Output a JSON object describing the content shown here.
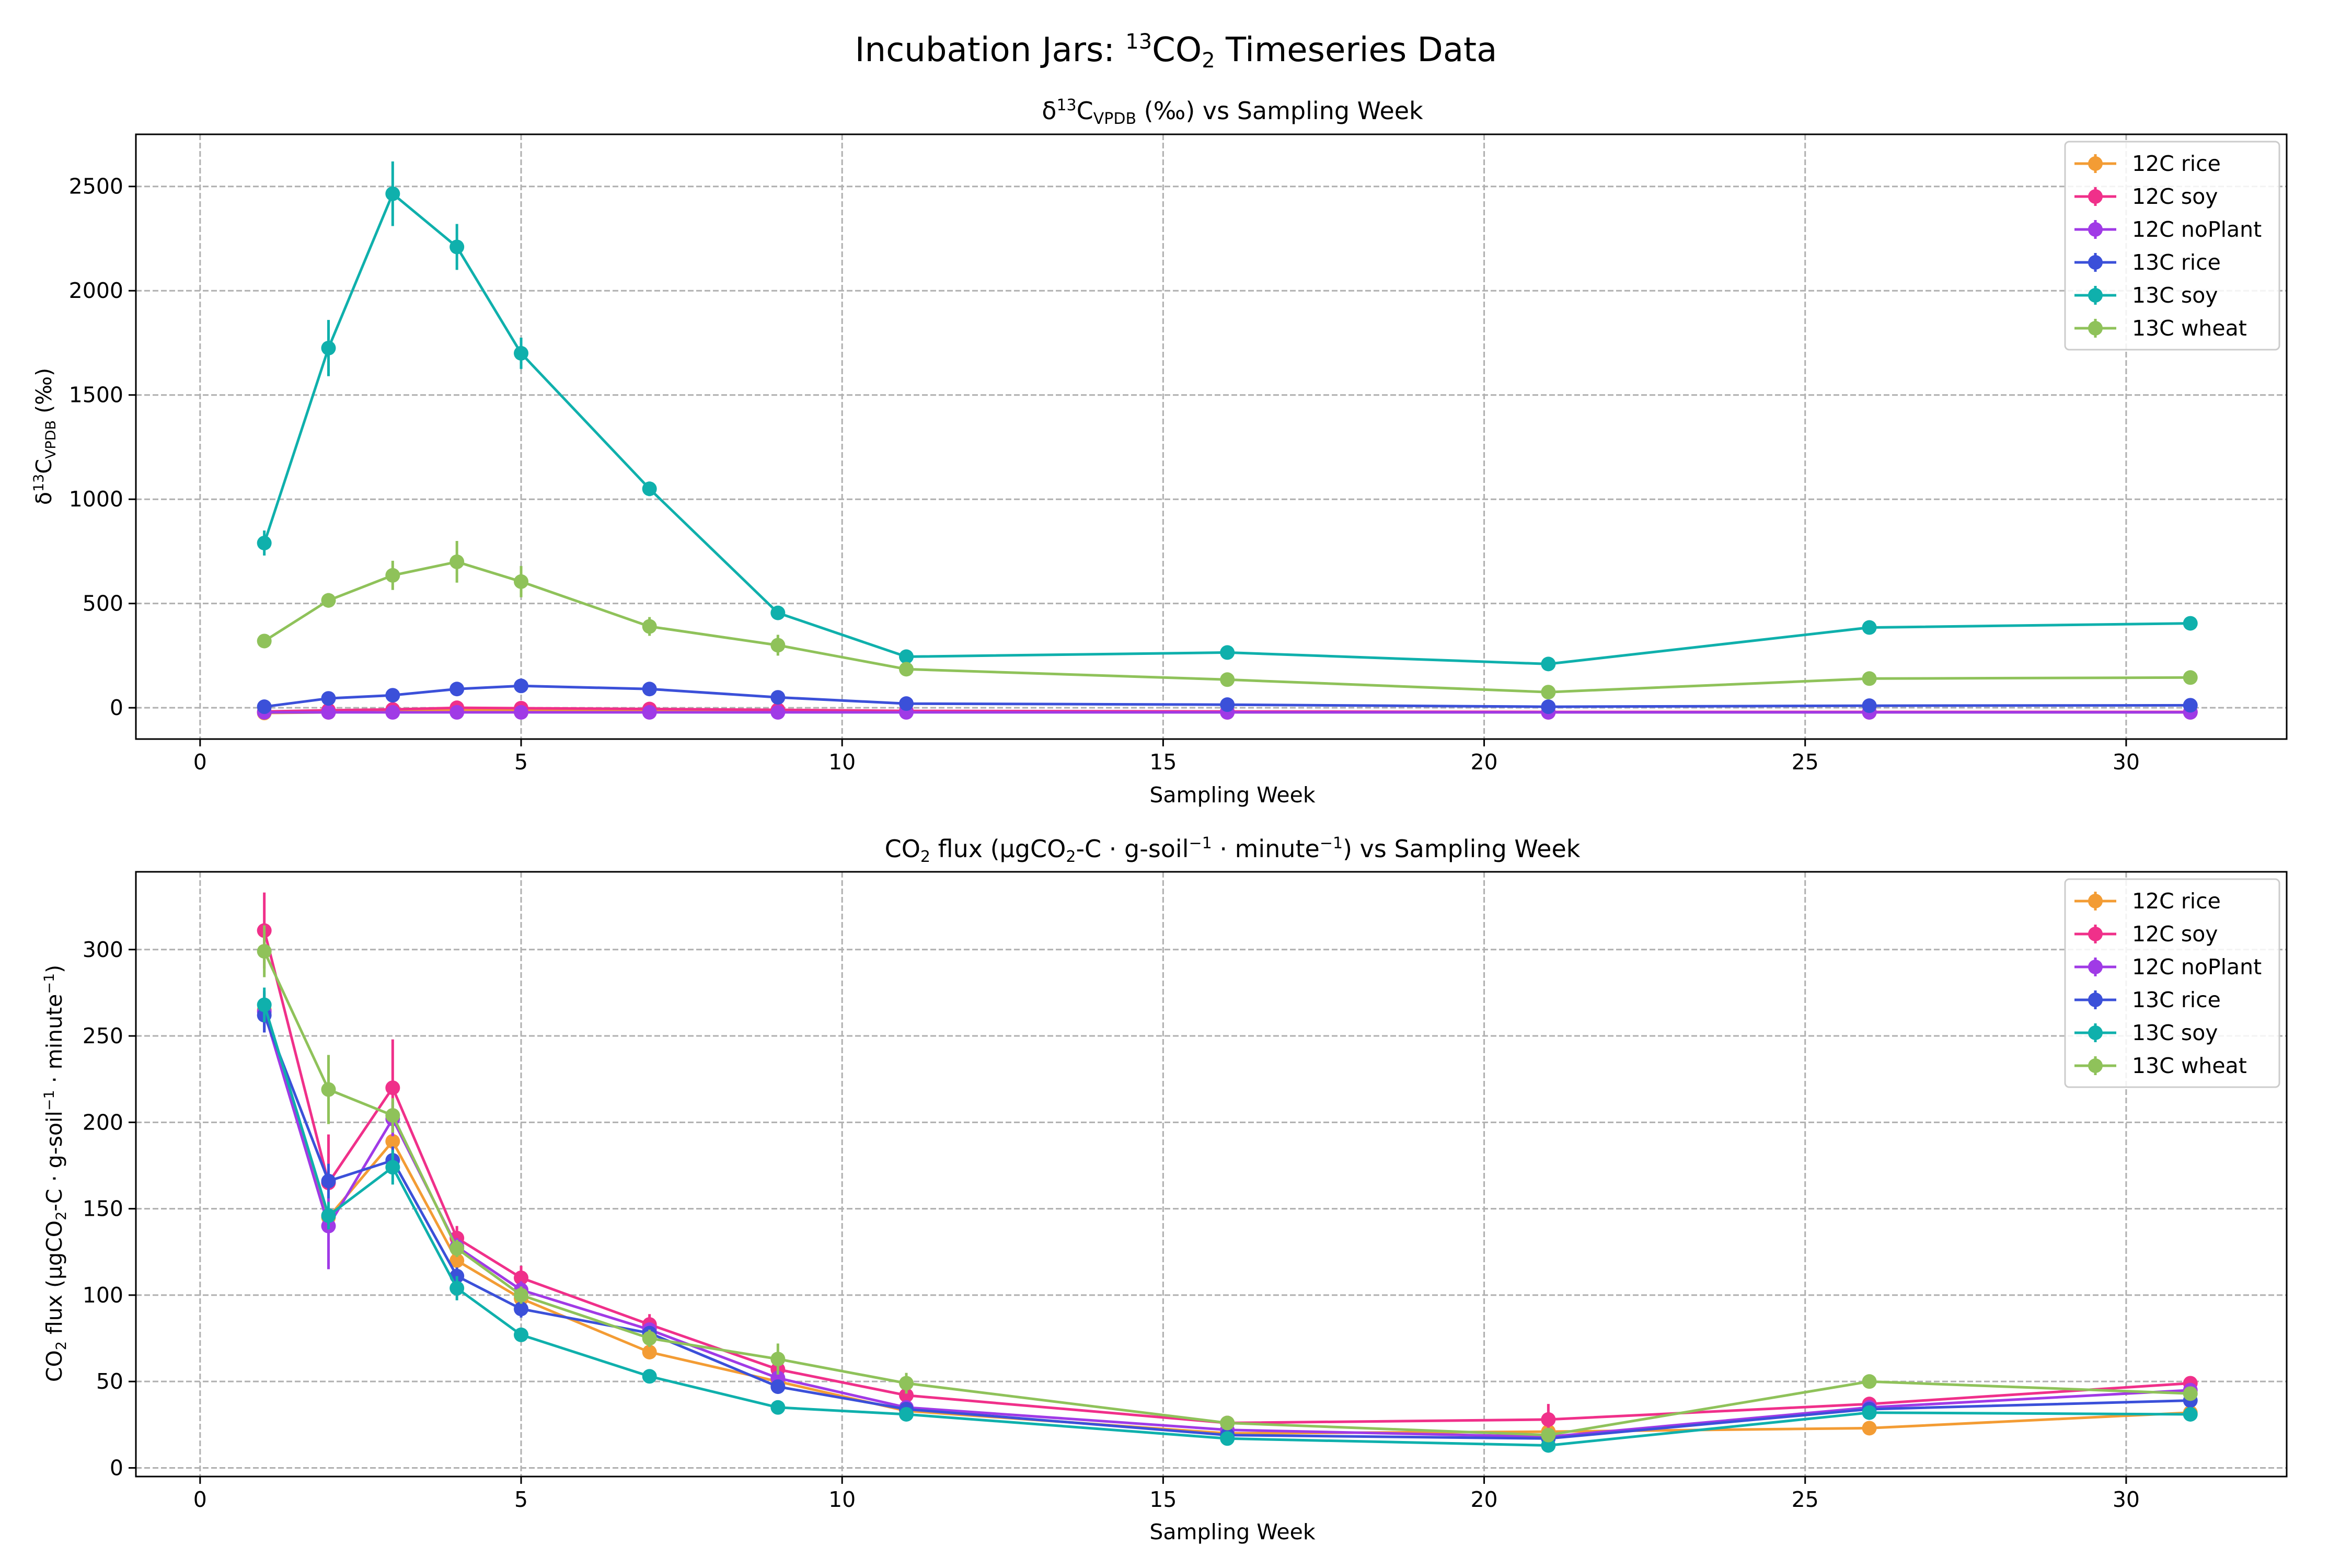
{
  "figure": {
    "suptitle_main": "Incubation Jars: ",
    "suptitle_sup": "13",
    "suptitle_co": "CO",
    "suptitle_sub": "2",
    "suptitle_end": " Timeseries Data"
  },
  "top_panel": {
    "title_delta": "δ",
    "title_sup": "13",
    "title_c": "C",
    "title_sub": "VPDB",
    "title_rest": " (‰) vs Sampling Week",
    "ylabel_delta": "δ",
    "ylabel_sup": "13",
    "ylabel_c": "C",
    "ylabel_sub": "VPDB",
    "ylabel_rest": " (‰)",
    "xlabel": "Sampling Week"
  },
  "bottom_panel": {
    "title_a": "CO",
    "title_sub1": "2",
    "title_b": " flux (μgCO",
    "title_sub2": "2",
    "title_c": "-C · g-soil",
    "title_sup1": "−1",
    "title_d": " · minute",
    "title_sup2": "−1",
    "title_e": ") vs Sampling Week",
    "ylabel_a": "CO",
    "ylabel_sub1": "2",
    "ylabel_b": " flux (μgCO",
    "ylabel_sub2": "2",
    "ylabel_c": "-C · g-soil",
    "ylabel_sup1": "−1",
    "ylabel_d": " · minute",
    "ylabel_sup2": "−1",
    "ylabel_e": ")",
    "xlabel": "Sampling Week"
  },
  "chart_data": [
    {
      "type": "line",
      "chart": "delta13C",
      "xlim": [
        -1,
        32.5
      ],
      "ylim": [
        -150,
        2750
      ],
      "xticks": [
        0,
        5,
        10,
        15,
        20,
        25,
        30
      ],
      "yticks": [
        0,
        500,
        1000,
        1500,
        2000,
        2500
      ],
      "grid": true,
      "legend": "top-right",
      "x": [
        1,
        2,
        3,
        4,
        5,
        7,
        9,
        11,
        16,
        21,
        26,
        31
      ],
      "series": [
        {
          "name": "12C rice",
          "color": "#f39c34",
          "values": [
            -25,
            -22,
            -18,
            -12,
            -12,
            -15,
            -18,
            -20,
            -22,
            -22,
            -22,
            -22
          ],
          "errors": [
            4,
            4,
            4,
            4,
            4,
            4,
            4,
            4,
            4,
            4,
            4,
            4
          ]
        },
        {
          "name": "12C soy",
          "color": "#f0308a",
          "values": [
            -18,
            -12,
            -8,
            0,
            -2,
            -6,
            -10,
            -15,
            -18,
            -20,
            -20,
            -20
          ],
          "errors": [
            5,
            5,
            5,
            5,
            5,
            5,
            5,
            5,
            5,
            5,
            5,
            5
          ]
        },
        {
          "name": "12C noPlant",
          "color": "#a03ae6",
          "values": [
            -22,
            -22,
            -22,
            -22,
            -22,
            -22,
            -22,
            -22,
            -22,
            -22,
            -22,
            -22
          ],
          "errors": [
            3,
            3,
            3,
            3,
            3,
            3,
            3,
            3,
            3,
            3,
            3,
            3
          ]
        },
        {
          "name": "13C rice",
          "color": "#3b50d9",
          "values": [
            5,
            45,
            60,
            90,
            105,
            90,
            50,
            20,
            15,
            5,
            10,
            12
          ],
          "errors": [
            8,
            10,
            12,
            15,
            15,
            12,
            10,
            8,
            6,
            6,
            6,
            6
          ]
        },
        {
          "name": "13C soy",
          "color": "#0fb0ac",
          "values": [
            790,
            1725,
            2465,
            2210,
            1700,
            1050,
            455,
            245,
            265,
            210,
            385,
            405
          ],
          "errors": [
            60,
            135,
            155,
            110,
            75,
            35,
            20,
            12,
            12,
            12,
            15,
            15
          ]
        },
        {
          "name": "13C wheat",
          "color": "#8fc25a",
          "values": [
            320,
            515,
            635,
            700,
            605,
            390,
            300,
            185,
            135,
            75,
            140,
            145
          ],
          "errors": [
            20,
            35,
            70,
            100,
            75,
            45,
            50,
            15,
            10,
            10,
            12,
            12
          ]
        }
      ]
    },
    {
      "type": "line",
      "chart": "CO2 flux",
      "xlim": [
        -1,
        32.5
      ],
      "ylim": [
        -5,
        345
      ],
      "xticks": [
        0,
        5,
        10,
        15,
        20,
        25,
        30
      ],
      "yticks": [
        0,
        50,
        100,
        150,
        200,
        250,
        300
      ],
      "grid": true,
      "legend": "top-right",
      "x": [
        1,
        2,
        3,
        4,
        5,
        7,
        9,
        11,
        16,
        21,
        26,
        31
      ],
      "series": [
        {
          "name": "12C rice",
          "color": "#f39c34",
          "values": [
            265,
            145,
            189,
            120,
            98,
            67,
            50,
            33,
            20,
            21,
            23,
            32
          ],
          "errors": [
            10,
            8,
            10,
            5,
            5,
            4,
            3,
            3,
            2,
            2,
            2,
            2
          ]
        },
        {
          "name": "12C soy",
          "color": "#f0308a",
          "values": [
            311,
            165,
            220,
            133,
            110,
            83,
            57,
            42,
            26,
            28,
            37,
            49
          ],
          "errors": [
            22,
            28,
            28,
            7,
            7,
            6,
            4,
            4,
            3,
            9,
            4,
            4
          ]
        },
        {
          "name": "12C noPlant",
          "color": "#a03ae6",
          "values": [
            264,
            140,
            202,
            128,
            103,
            80,
            52,
            35,
            22,
            18,
            35,
            45
          ],
          "errors": [
            12,
            25,
            10,
            5,
            5,
            4,
            3,
            3,
            2,
            2,
            3,
            3
          ]
        },
        {
          "name": "13C rice",
          "color": "#3b50d9",
          "values": [
            262,
            166,
            178,
            111,
            92,
            78,
            47,
            34,
            19,
            17,
            34,
            39
          ],
          "errors": [
            10,
            10,
            8,
            5,
            5,
            4,
            3,
            3,
            2,
            2,
            3,
            3
          ]
        },
        {
          "name": "13C soy",
          "color": "#0fb0ac",
          "values": [
            268,
            146,
            174,
            104,
            77,
            53,
            35,
            31,
            17,
            13,
            32,
            31
          ],
          "errors": [
            10,
            8,
            10,
            7,
            4,
            3,
            2,
            2,
            2,
            2,
            2,
            2
          ]
        },
        {
          "name": "13C wheat",
          "color": "#8fc25a",
          "values": [
            299,
            219,
            204,
            127,
            100,
            75,
            63,
            49,
            26,
            19,
            50,
            43
          ],
          "errors": [
            15,
            20,
            10,
            5,
            5,
            5,
            9,
            6,
            3,
            2,
            3,
            3
          ]
        }
      ]
    }
  ]
}
